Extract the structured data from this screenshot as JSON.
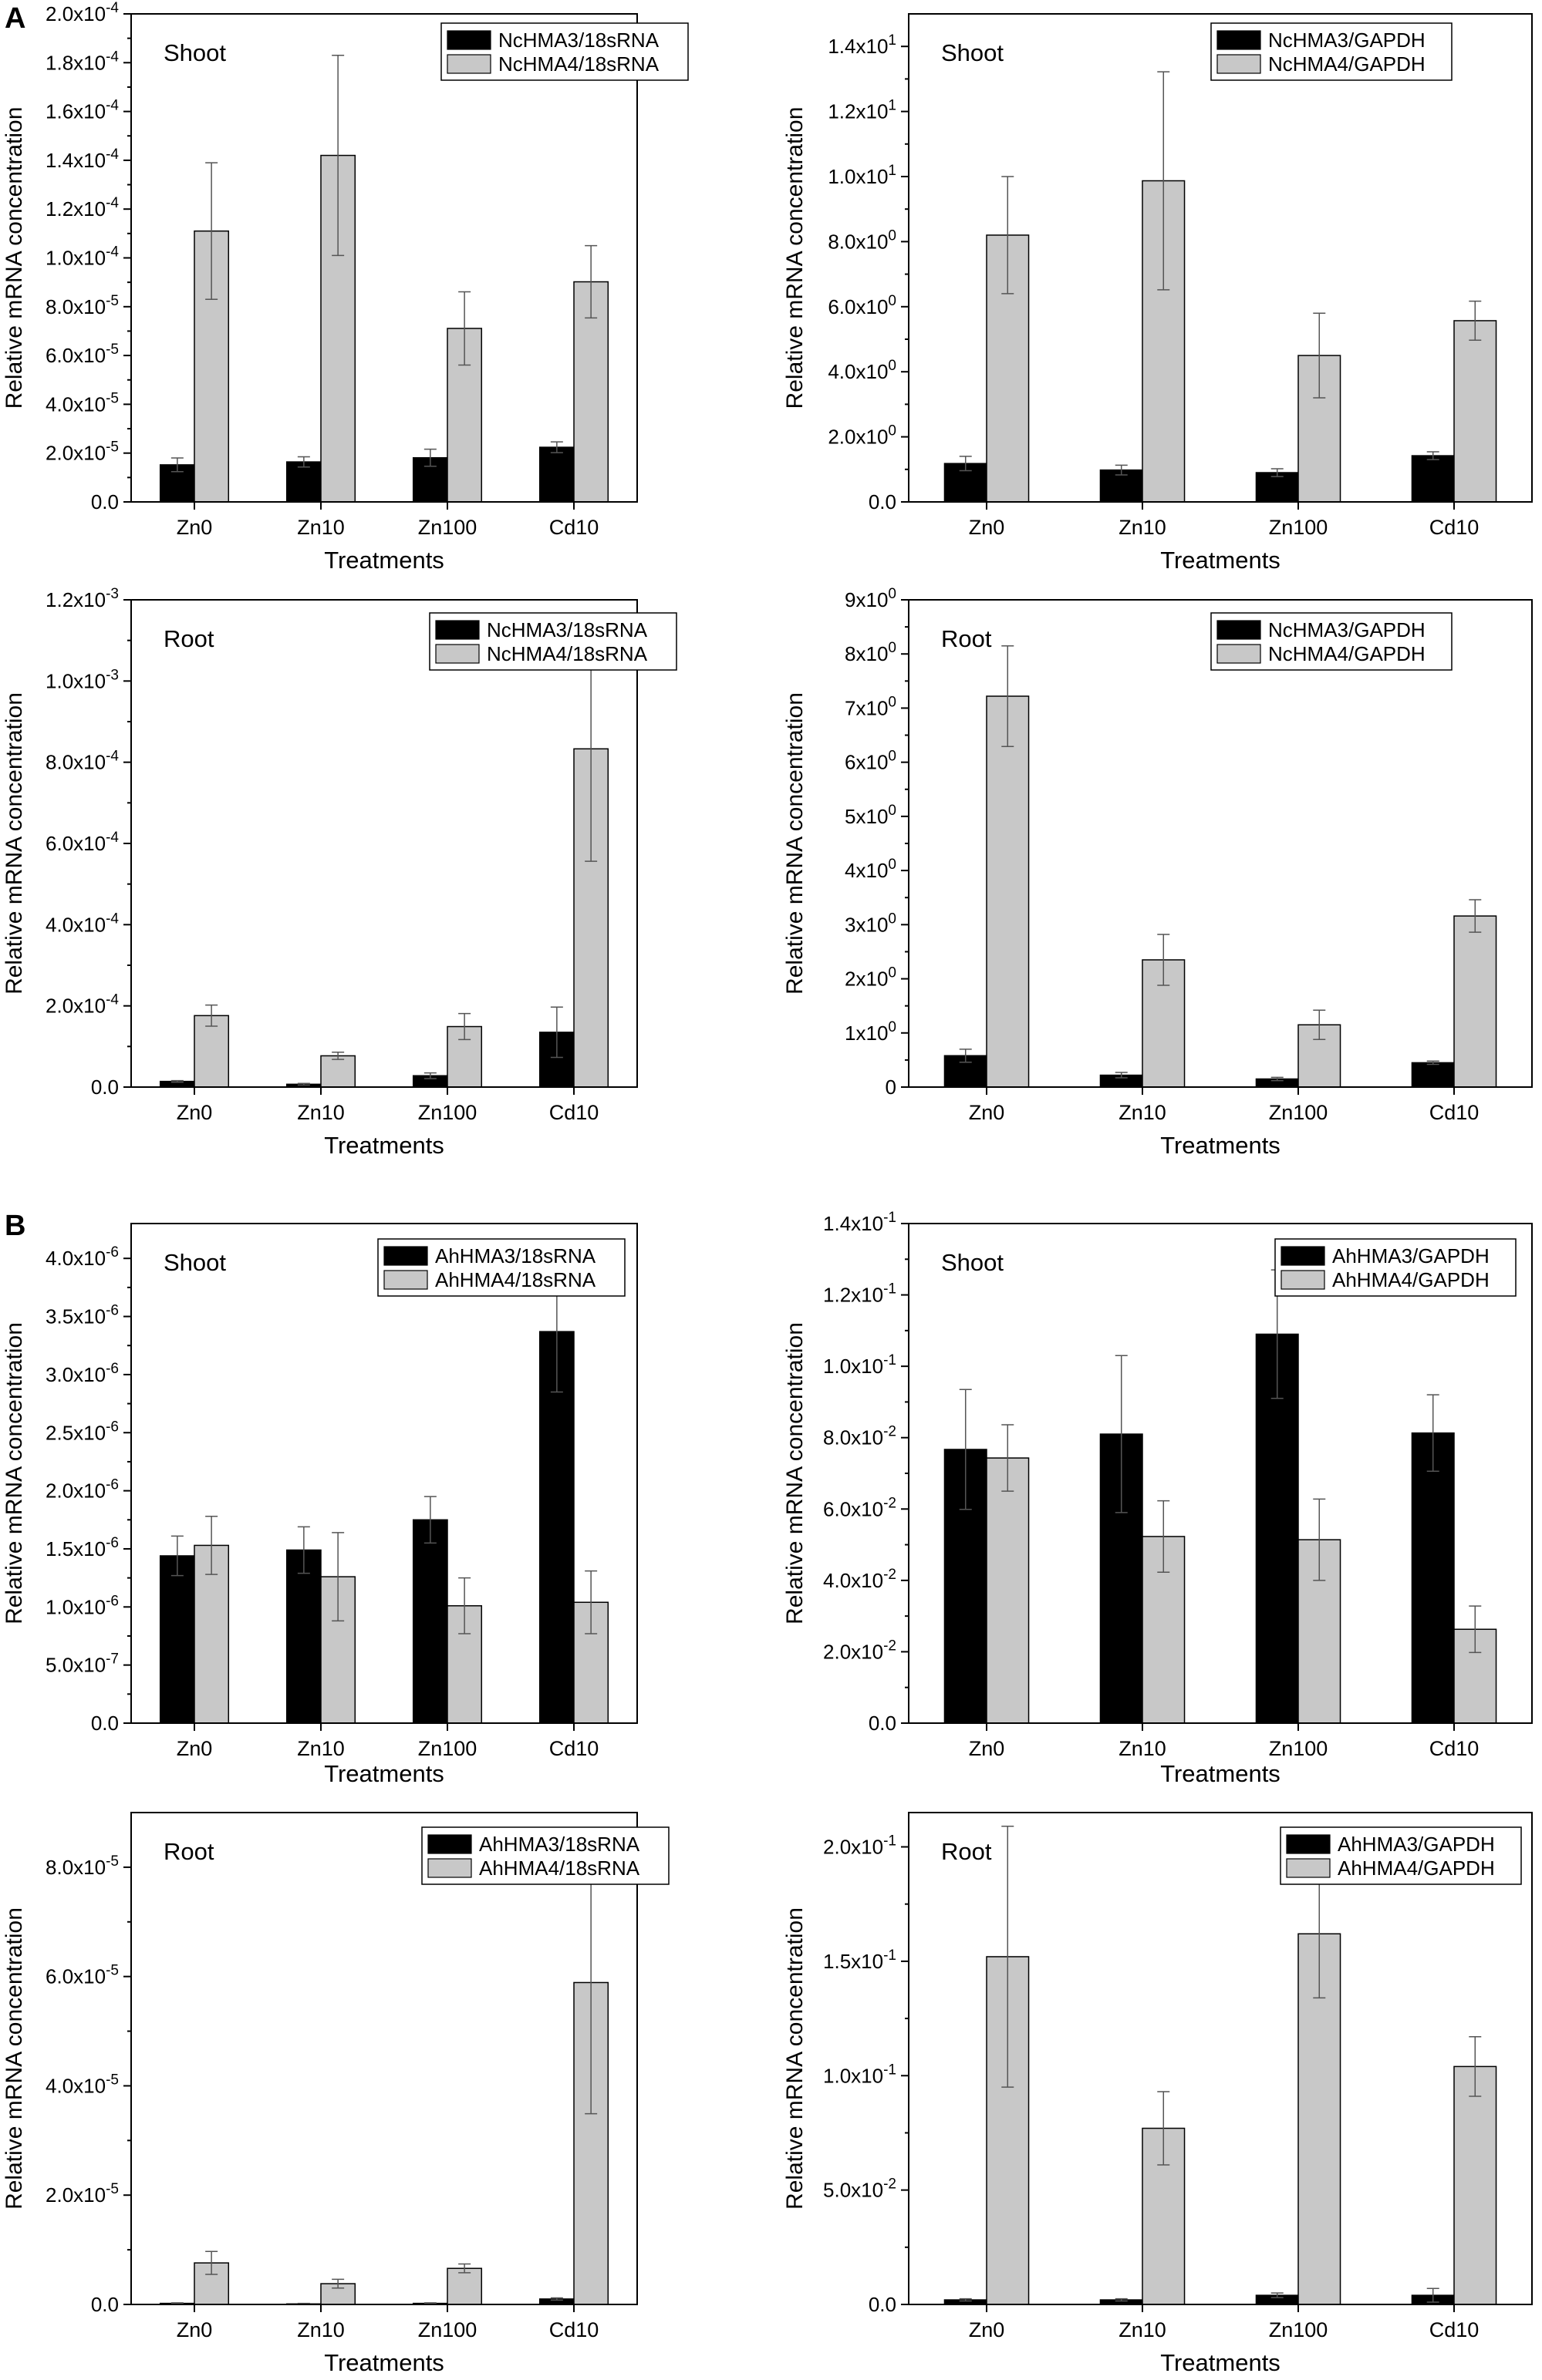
{
  "panel_labels": [
    "A",
    "B"
  ],
  "colors": {
    "black": "#000000",
    "grey": "#c8c8c8",
    "error_bar": "#555555"
  },
  "chart_data": [
    {
      "type": "bar",
      "panel": "A",
      "title": "Shoot",
      "xlabel": "Treatments",
      "ylabel": "Relative mRNA concentration",
      "categories": [
        "Zn0",
        "Zn10",
        "Zn100",
        "Cd10"
      ],
      "ylim": [
        0,
        0.0002
      ],
      "yticks": [
        0,
        2e-05,
        4e-05,
        6e-05,
        8e-05,
        0.0001,
        0.00012,
        0.00014,
        0.00016,
        0.00018,
        0.0002
      ],
      "ytick_labels": [
        {
          "m": "0.0",
          "e": ""
        },
        {
          "m": "2.0x10",
          "e": "-5"
        },
        {
          "m": "4.0x10",
          "e": "-5"
        },
        {
          "m": "6.0x10",
          "e": "-5"
        },
        {
          "m": "8.0x10",
          "e": "-5"
        },
        {
          "m": "1.0x10",
          "e": "-4"
        },
        {
          "m": "1.2x10",
          "e": "-4"
        },
        {
          "m": "1.4x10",
          "e": "-4"
        },
        {
          "m": "1.6x10",
          "e": "-4"
        },
        {
          "m": "1.8x10",
          "e": "-4"
        },
        {
          "m": "2.0x10",
          "e": "-4"
        }
      ],
      "series": [
        {
          "name": "NcHMA3/18sRNA",
          "color": "black",
          "values": [
            1.52e-05,
            1.64e-05,
            1.81e-05,
            2.24e-05
          ],
          "errors": [
            2.8e-06,
            2.1e-06,
            3.5e-06,
            2.2e-06
          ]
        },
        {
          "name": "NcHMA4/18sRNA",
          "color": "grey",
          "values": [
            0.000111,
            0.000142,
            7.11e-05,
            9.02e-05
          ],
          "errors": [
            2.8e-05,
            4.1e-05,
            1.5e-05,
            1.48e-05
          ]
        }
      ],
      "legend": "top-right"
    },
    {
      "type": "bar",
      "panel": "A",
      "title": "Shoot",
      "xlabel": "Treatments",
      "ylabel": "Relative mRNA concentration",
      "categories": [
        "Zn0",
        "Zn10",
        "Zn100",
        "Cd10"
      ],
      "ylim": [
        0,
        15
      ],
      "yticks": [
        0,
        2,
        4,
        6,
        8,
        10,
        12,
        14
      ],
      "ytick_labels": [
        {
          "m": "0.0",
          "e": ""
        },
        {
          "m": "2.0x10",
          "e": "0"
        },
        {
          "m": "4.0x10",
          "e": "0"
        },
        {
          "m": "6.0x10",
          "e": "0"
        },
        {
          "m": "8.0x10",
          "e": "0"
        },
        {
          "m": "1.0x10",
          "e": "1"
        },
        {
          "m": "1.2x10",
          "e": "1"
        },
        {
          "m": "1.4x10",
          "e": "1"
        }
      ],
      "series": [
        {
          "name": "NcHMA3/GAPDH",
          "color": "black",
          "values": [
            1.18,
            0.98,
            0.9,
            1.42
          ],
          "errors": [
            0.22,
            0.15,
            0.12,
            0.12
          ]
        },
        {
          "name": "NcHMA4/GAPDH",
          "color": "grey",
          "values": [
            8.2,
            9.87,
            4.5,
            5.57
          ],
          "errors": [
            1.8,
            3.35,
            1.3,
            0.6
          ]
        }
      ],
      "legend": "top-right"
    },
    {
      "type": "bar",
      "panel": "A",
      "title": "Root",
      "xlabel": "Treatments",
      "ylabel": "Relative mRNA concentration",
      "categories": [
        "Zn0",
        "Zn10",
        "Zn100",
        "Cd10"
      ],
      "ylim": [
        0,
        0.0012
      ],
      "yticks": [
        0,
        0.0002,
        0.0004,
        0.0006,
        0.0008,
        0.001,
        0.0012
      ],
      "ytick_labels": [
        {
          "m": "0.0",
          "e": ""
        },
        {
          "m": "2.0x10",
          "e": "-4"
        },
        {
          "m": "4.0x10",
          "e": "-4"
        },
        {
          "m": "6.0x10",
          "e": "-4"
        },
        {
          "m": "8.0x10",
          "e": "-4"
        },
        {
          "m": "1.0x10",
          "e": "-3"
        },
        {
          "m": "1.2x10",
          "e": "-3"
        }
      ],
      "series": [
        {
          "name": "NcHMA3/18sRNA",
          "color": "black",
          "values": [
            1.4e-05,
            7e-06,
            2.8e-05,
            0.000135
          ],
          "errors": [
            2e-06,
            2e-06,
            7e-06,
            6.2e-05
          ]
        },
        {
          "name": "NcHMA4/18sRNA",
          "color": "grey",
          "values": [
            0.000176,
            7.7e-05,
            0.000149,
            0.000833
          ],
          "errors": [
            2.6e-05,
            9e-06,
            3.2e-05,
            0.000277
          ]
        }
      ],
      "legend": "top-right"
    },
    {
      "type": "bar",
      "panel": "A",
      "title": "Root",
      "xlabel": "Treatments",
      "ylabel": "Relative mRNA concentration",
      "categories": [
        "Zn0",
        "Zn10",
        "Zn100",
        "Cd10"
      ],
      "ylim": [
        0,
        9
      ],
      "yticks": [
        0,
        1,
        2,
        3,
        4,
        5,
        6,
        7,
        8,
        9
      ],
      "ytick_labels": [
        {
          "m": "0",
          "e": ""
        },
        {
          "m": "1x10",
          "e": "0"
        },
        {
          "m": "2x10",
          "e": "0"
        },
        {
          "m": "3x10",
          "e": "0"
        },
        {
          "m": "4x10",
          "e": "0"
        },
        {
          "m": "5x10",
          "e": "0"
        },
        {
          "m": "6x10",
          "e": "0"
        },
        {
          "m": "7x10",
          "e": "0"
        },
        {
          "m": "8x10",
          "e": "0"
        },
        {
          "m": "9x10",
          "e": "0"
        }
      ],
      "series": [
        {
          "name": "NcHMA3/GAPDH",
          "color": "black",
          "values": [
            0.58,
            0.22,
            0.15,
            0.45
          ],
          "errors": [
            0.12,
            0.05,
            0.03,
            0.03
          ]
        },
        {
          "name": "NcHMA4/GAPDH",
          "color": "grey",
          "values": [
            7.22,
            2.35,
            1.15,
            3.16
          ],
          "errors": [
            0.93,
            0.47,
            0.27,
            0.3
          ]
        }
      ],
      "legend": "top-right"
    },
    {
      "type": "bar",
      "panel": "B",
      "title": "Shoot",
      "xlabel": "Treatments",
      "ylabel": "Relative mRNA concentration",
      "categories": [
        "Zn0",
        "Zn10",
        "Zn100",
        "Cd10"
      ],
      "ylim": [
        0,
        4.3e-06
      ],
      "yticks": [
        0,
        5e-07,
        1e-06,
        1.5e-06,
        2e-06,
        2.5e-06,
        3e-06,
        3.5e-06,
        4e-06
      ],
      "ytick_labels": [
        {
          "m": "0.0",
          "e": ""
        },
        {
          "m": "5.0x10",
          "e": "-7"
        },
        {
          "m": "1.0x10",
          "e": "-6"
        },
        {
          "m": "1.5x10",
          "e": "-6"
        },
        {
          "m": "2.0x10",
          "e": "-6"
        },
        {
          "m": "2.5x10",
          "e": "-6"
        },
        {
          "m": "3.0x10",
          "e": "-6"
        },
        {
          "m": "3.5x10",
          "e": "-6"
        },
        {
          "m": "4.0x10",
          "e": "-6"
        }
      ],
      "series": [
        {
          "name": "AhHMA3/18sRNA",
          "color": "black",
          "values": [
            1.44e-06,
            1.49e-06,
            1.75e-06,
            3.37e-06
          ],
          "errors": [
            1.7e-07,
            2e-07,
            2e-07,
            5.2e-07
          ]
        },
        {
          "name": "AhHMA4/18sRNA",
          "color": "grey",
          "values": [
            1.53e-06,
            1.26e-06,
            1.01e-06,
            1.04e-06
          ],
          "errors": [
            2.5e-07,
            3.8e-07,
            2.4e-07,
            2.7e-07
          ]
        }
      ],
      "legend": "top-right"
    },
    {
      "type": "bar",
      "panel": "B",
      "title": "Shoot",
      "xlabel": "Treatments",
      "ylabel": "Relative mRNA concentration",
      "categories": [
        "Zn0",
        "Zn10",
        "Zn100",
        "Cd10"
      ],
      "ylim": [
        0,
        0.14
      ],
      "yticks": [
        0,
        0.02,
        0.04,
        0.06,
        0.08,
        0.1,
        0.12,
        0.14
      ],
      "ytick_labels": [
        {
          "m": "0.0",
          "e": ""
        },
        {
          "m": "2.0x10",
          "e": "-2"
        },
        {
          "m": "4.0x10",
          "e": "-2"
        },
        {
          "m": "6.0x10",
          "e": "-2"
        },
        {
          "m": "8.0x10",
          "e": "-2"
        },
        {
          "m": "1.0x10",
          "e": "-1"
        },
        {
          "m": "1.2x10",
          "e": "-1"
        },
        {
          "m": "1.4x10",
          "e": "-1"
        }
      ],
      "series": [
        {
          "name": "AhHMA3/GAPDH",
          "color": "black",
          "values": [
            0.0767,
            0.081,
            0.109,
            0.0813
          ],
          "errors": [
            0.0168,
            0.022,
            0.018,
            0.0107
          ]
        },
        {
          "name": "AhHMA4/GAPDH",
          "color": "grey",
          "values": [
            0.0743,
            0.0523,
            0.0514,
            0.0263
          ],
          "errors": [
            0.0093,
            0.01,
            0.0114,
            0.0065
          ]
        }
      ],
      "legend": "top-right"
    },
    {
      "type": "bar",
      "panel": "B",
      "title": "Root",
      "xlabel": "Treatments",
      "ylabel": "Relative mRNA concentration",
      "categories": [
        "Zn0",
        "Zn10",
        "Zn100",
        "Cd10"
      ],
      "ylim": [
        0,
        9e-05
      ],
      "yticks": [
        0,
        2e-05,
        4e-05,
        6e-05,
        8e-05
      ],
      "ytick_labels": [
        {
          "m": "0.0",
          "e": ""
        },
        {
          "m": "2.0x10",
          "e": "-5"
        },
        {
          "m": "4.0x10",
          "e": "-5"
        },
        {
          "m": "6.0x10",
          "e": "-5"
        },
        {
          "m": "8.0x10",
          "e": "-5"
        }
      ],
      "series": [
        {
          "name": "AhHMA3/18sRNA",
          "color": "black",
          "values": [
            2e-07,
            1e-07,
            2e-07,
            1e-06
          ],
          "errors": [
            1e-07,
            1e-07,
            1e-07,
            2e-07
          ]
        },
        {
          "name": "AhHMA4/18sRNA",
          "color": "grey",
          "values": [
            7.6e-06,
            3.8e-06,
            6.6e-06,
            5.89e-05
          ],
          "errors": [
            2.1e-06,
            8e-07,
            8e-07,
            2.4e-05
          ]
        }
      ],
      "legend": "top-right"
    },
    {
      "type": "bar",
      "panel": "B",
      "title": "Root",
      "xlabel": "Treatments",
      "ylabel": "Relative mRNA concentration",
      "categories": [
        "Zn0",
        "Zn10",
        "Zn100",
        "Cd10"
      ],
      "ylim": [
        0,
        0.215
      ],
      "yticks": [
        0,
        0.05,
        0.1,
        0.15,
        0.2
      ],
      "ytick_labels": [
        {
          "m": "0.0",
          "e": ""
        },
        {
          "m": "5.0x10",
          "e": "-2"
        },
        {
          "m": "1.0x10",
          "e": "-1"
        },
        {
          "m": "1.5x10",
          "e": "-1"
        },
        {
          "m": "2.0x10",
          "e": "-1"
        }
      ],
      "series": [
        {
          "name": "AhHMA3/GAPDH",
          "color": "black",
          "values": [
            0.002,
            0.002,
            0.004,
            0.004
          ],
          "errors": [
            0.0005,
            0.0005,
            0.001,
            0.003
          ]
        },
        {
          "name": "AhHMA4/GAPDH",
          "color": "grey",
          "values": [
            0.152,
            0.077,
            0.162,
            0.104
          ],
          "errors": [
            0.057,
            0.016,
            0.028,
            0.013
          ]
        }
      ],
      "legend": "top-right"
    }
  ]
}
